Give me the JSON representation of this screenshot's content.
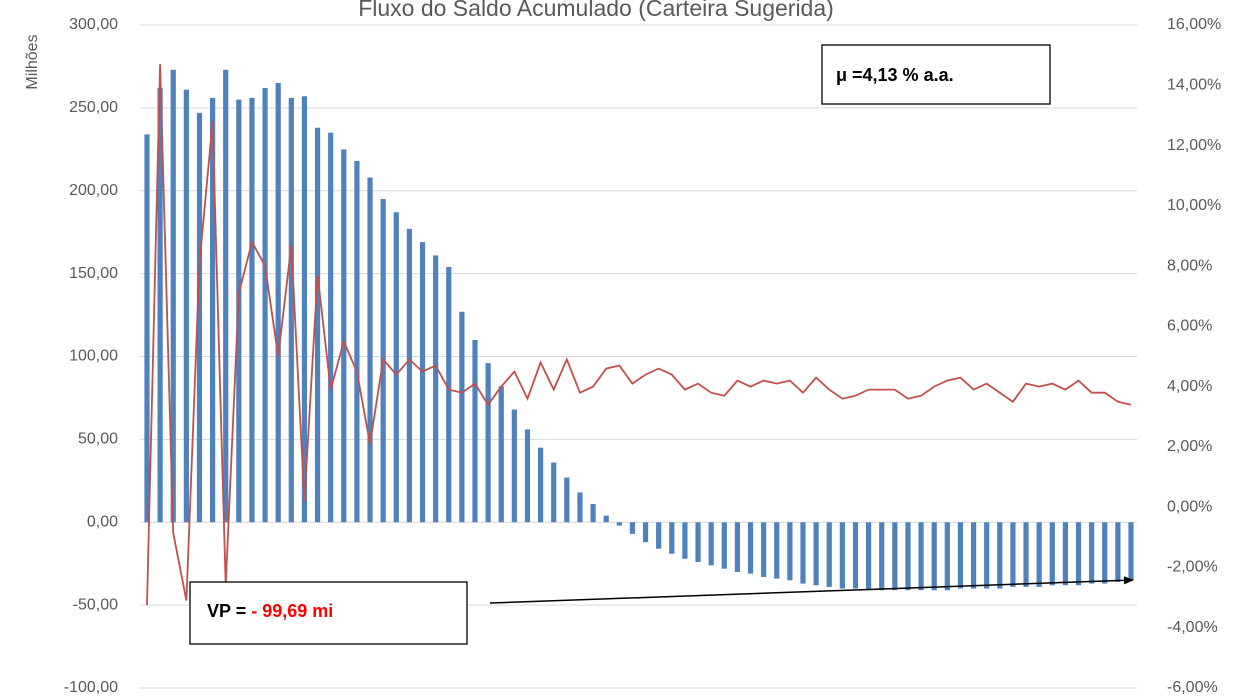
{
  "chart_data": {
    "type": "bar_line",
    "title": "Fluxo do Saldo Acumulado (Carteira Sugerida)",
    "y_label": "Milhões",
    "ylim": [
      -100,
      300
    ],
    "yticks": [
      {
        "value": -100,
        "label": "-100,00"
      },
      {
        "value": -50,
        "label": "-50,00"
      },
      {
        "value": 0,
        "label": "0,00"
      },
      {
        "value": 50,
        "label": "50,00"
      },
      {
        "value": 100,
        "label": "100,00"
      },
      {
        "value": 150,
        "label": "150,00"
      },
      {
        "value": 200,
        "label": "200,00"
      },
      {
        "value": 250,
        "label": "250,00"
      },
      {
        "value": 300,
        "label": "300,00"
      }
    ],
    "y2lim": [
      -6,
      16
    ],
    "y2ticks": [
      {
        "value": -6,
        "label": "-6,00%"
      },
      {
        "value": -4,
        "label": "-4,00%"
      },
      {
        "value": -2,
        "label": "-2,00%"
      },
      {
        "value": 0,
        "label": "0,00%"
      },
      {
        "value": 2,
        "label": "2,00%"
      },
      {
        "value": 4,
        "label": "4,00%"
      },
      {
        "value": 6,
        "label": "6,00%"
      },
      {
        "value": 8,
        "label": "8,00%"
      },
      {
        "value": 10,
        "label": "10,00%"
      },
      {
        "value": 12,
        "label": "12,00%"
      },
      {
        "value": 14,
        "label": "14,00%"
      },
      {
        "value": 16,
        "label": "16,00%"
      }
    ],
    "grid": true,
    "series": [
      {
        "type": "bar",
        "color": "#4f81bd",
        "values": [
          234,
          262,
          273,
          261,
          247,
          256,
          273,
          255,
          256,
          262,
          265,
          256,
          257,
          238,
          235,
          225,
          218,
          208,
          195,
          187,
          177,
          169,
          161,
          154,
          127,
          110,
          96,
          82,
          68,
          56,
          45,
          36,
          27,
          18,
          11,
          4,
          -2,
          -7,
          -12,
          -16,
          -19,
          -22,
          -24,
          -26,
          -28,
          -30,
          -31,
          -33,
          -34,
          -35,
          -37,
          -38,
          -39,
          -40,
          -40,
          -41,
          -41,
          -41,
          -41,
          -41,
          -41,
          -41,
          -40,
          -40,
          -40,
          -40,
          -39,
          -39,
          -39,
          -38,
          -38,
          -38,
          -37,
          -37,
          -36,
          -35
        ]
      },
      {
        "type": "line",
        "axis": "y2",
        "color": "#c0504d",
        "values": [
          -3.25,
          14.7,
          -0.85,
          -3.1,
          8.1,
          12.8,
          -2.6,
          7.1,
          8.8,
          8.0,
          5.0,
          8.7,
          0.2,
          7.7,
          3.9,
          5.5,
          4.5,
          2.1,
          4.9,
          4.4,
          4.9,
          4.5,
          4.7,
          3.9,
          3.8,
          4.1,
          3.4,
          4.0,
          4.5,
          3.6,
          4.8,
          3.9,
          4.9,
          3.8,
          4.0,
          4.6,
          4.7,
          4.1,
          4.4,
          4.6,
          4.4,
          3.9,
          4.1,
          3.8,
          3.7,
          4.2,
          4.0,
          4.2,
          4.1,
          4.2,
          3.8,
          4.3,
          3.9,
          3.6,
          3.7,
          3.9,
          3.9,
          3.9,
          3.6,
          3.7,
          4.0,
          4.2,
          4.3,
          3.9,
          4.1,
          3.8,
          3.5,
          4.1,
          4.0,
          4.1,
          3.9,
          4.2,
          3.8,
          3.8,
          3.5,
          3.4
        ]
      }
    ],
    "annotations": [
      {
        "text": "μ =4,13 % a.a."
      },
      {
        "parts": [
          {
            "text": "VP = ",
            "color": "#000000"
          },
          {
            "text": "- 99,69 mi",
            "color": "#ff0000"
          }
        ]
      }
    ]
  }
}
